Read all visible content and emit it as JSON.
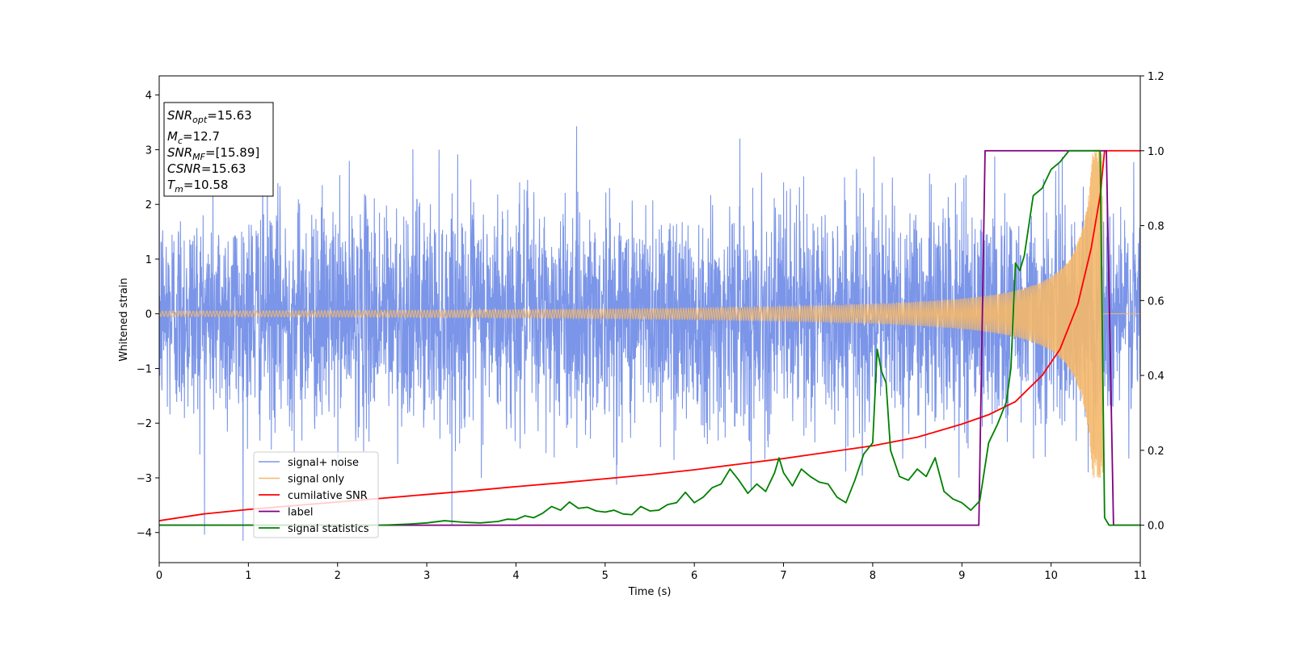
{
  "chart_data": {
    "type": "line",
    "xlabel": "Time (s)",
    "ylabel": "Whitened strain",
    "xlim": [
      0,
      11
    ],
    "ylim_left": [
      -4.55,
      4.35
    ],
    "ylim_right": [
      -0.1,
      1.2
    ],
    "x_ticks": [
      0,
      1,
      2,
      3,
      4,
      5,
      6,
      7,
      8,
      9,
      10,
      11
    ],
    "y_ticks_left": [
      -4,
      -3,
      -2,
      -1,
      0,
      1,
      2,
      3,
      4
    ],
    "y_ticks_right": [
      0.0,
      0.2,
      0.4,
      0.6,
      0.8,
      1.0,
      1.2
    ],
    "x_tick_labels": [
      "0",
      "1",
      "2",
      "3",
      "4",
      "5",
      "6",
      "7",
      "8",
      "9",
      "10",
      "11"
    ],
    "y_tick_labels_left": [
      "−4",
      "−3",
      "−2",
      "−1",
      "0",
      "1",
      "2",
      "3",
      "4"
    ],
    "y_tick_labels_right": [
      "0.0",
      "0.2",
      "0.4",
      "0.6",
      "0.8",
      "1.0",
      "1.2"
    ],
    "legend_position": "lower-left",
    "grid": false,
    "annotation": {
      "lines": [
        {
          "sym": "SNR",
          "sub": "opt",
          "value": "=15.63"
        },
        {
          "sym": "M",
          "sub": "c",
          "value": "=12.7"
        },
        {
          "sym": "SNR",
          "sub": "MF",
          "value": "=[15.89]"
        },
        {
          "sym": "CSNR",
          "sub": "",
          "value": "=15.63"
        },
        {
          "sym": "T",
          "sub": "m",
          "value": "=10.58"
        }
      ]
    },
    "series": [
      {
        "name": "signal+ noise",
        "axis": "left",
        "color": "#7b95e8",
        "kind": "noise",
        "amplitude": 1.0,
        "spikes_up_to": 3.95
      },
      {
        "name": "signal only",
        "axis": "left",
        "color": "#f5b86a",
        "kind": "chirp",
        "merger_time": 10.58,
        "peak_amplitude": 3.0,
        "start_amplitude": 0.05
      },
      {
        "name": "cumilative SNR",
        "axis": "right",
        "color": "#ff0000",
        "x": [
          0,
          0.5,
          1,
          1.5,
          2,
          2.5,
          3,
          3.5,
          4,
          4.5,
          5,
          5.5,
          6,
          6.5,
          7,
          7.5,
          8,
          8.5,
          9,
          9.3,
          9.6,
          9.9,
          10.1,
          10.3,
          10.45,
          10.55,
          10.6,
          11
        ],
        "y": [
          0.012,
          0.03,
          0.042,
          0.052,
          0.062,
          0.072,
          0.082,
          0.092,
          0.103,
          0.113,
          0.124,
          0.135,
          0.148,
          0.163,
          0.178,
          0.195,
          0.212,
          0.235,
          0.27,
          0.295,
          0.33,
          0.4,
          0.47,
          0.59,
          0.74,
          0.88,
          1.0,
          1.0
        ]
      },
      {
        "name": "label",
        "axis": "right",
        "color": "#800080",
        "x": [
          0,
          9.19,
          9.26,
          10.62,
          10.7,
          11
        ],
        "y": [
          0.0,
          0.0,
          1.0,
          1.0,
          0.0,
          0.0
        ]
      },
      {
        "name": "signal statistics",
        "axis": "right",
        "color": "#008000",
        "x": [
          0,
          1,
          2,
          2.5,
          2.8,
          3.0,
          3.2,
          3.4,
          3.6,
          3.8,
          3.9,
          4.0,
          4.1,
          4.2,
          4.3,
          4.4,
          4.5,
          4.6,
          4.7,
          4.8,
          4.9,
          5.0,
          5.1,
          5.2,
          5.3,
          5.4,
          5.5,
          5.6,
          5.7,
          5.8,
          5.9,
          6.0,
          6.1,
          6.2,
          6.3,
          6.4,
          6.5,
          6.6,
          6.7,
          6.8,
          6.9,
          6.95,
          7.0,
          7.1,
          7.2,
          7.3,
          7.4,
          7.5,
          7.6,
          7.7,
          7.8,
          7.9,
          8.0,
          8.05,
          8.1,
          8.15,
          8.2,
          8.3,
          8.4,
          8.5,
          8.6,
          8.7,
          8.8,
          8.9,
          9.0,
          9.1,
          9.2,
          9.3,
          9.4,
          9.5,
          9.55,
          9.6,
          9.65,
          9.7,
          9.8,
          9.9,
          10.0,
          10.1,
          10.2,
          10.3,
          10.4,
          10.5,
          10.55,
          10.6,
          10.65,
          10.7,
          11
        ],
        "y": [
          0.0,
          0.0,
          0.0,
          0.0,
          0.003,
          0.006,
          0.012,
          0.008,
          0.006,
          0.01,
          0.016,
          0.015,
          0.025,
          0.02,
          0.032,
          0.05,
          0.04,
          0.062,
          0.045,
          0.048,
          0.038,
          0.035,
          0.04,
          0.03,
          0.028,
          0.05,
          0.038,
          0.04,
          0.055,
          0.06,
          0.088,
          0.06,
          0.075,
          0.1,
          0.11,
          0.15,
          0.12,
          0.085,
          0.11,
          0.09,
          0.14,
          0.18,
          0.14,
          0.105,
          0.15,
          0.13,
          0.115,
          0.11,
          0.075,
          0.06,
          0.12,
          0.19,
          0.22,
          0.47,
          0.41,
          0.38,
          0.2,
          0.13,
          0.12,
          0.15,
          0.13,
          0.18,
          0.09,
          0.07,
          0.06,
          0.04,
          0.065,
          0.22,
          0.27,
          0.33,
          0.42,
          0.7,
          0.68,
          0.72,
          0.88,
          0.9,
          0.95,
          0.97,
          1.0,
          1.0,
          1.0,
          1.0,
          1.0,
          0.02,
          0.0,
          0.0,
          0.0
        ]
      }
    ]
  }
}
